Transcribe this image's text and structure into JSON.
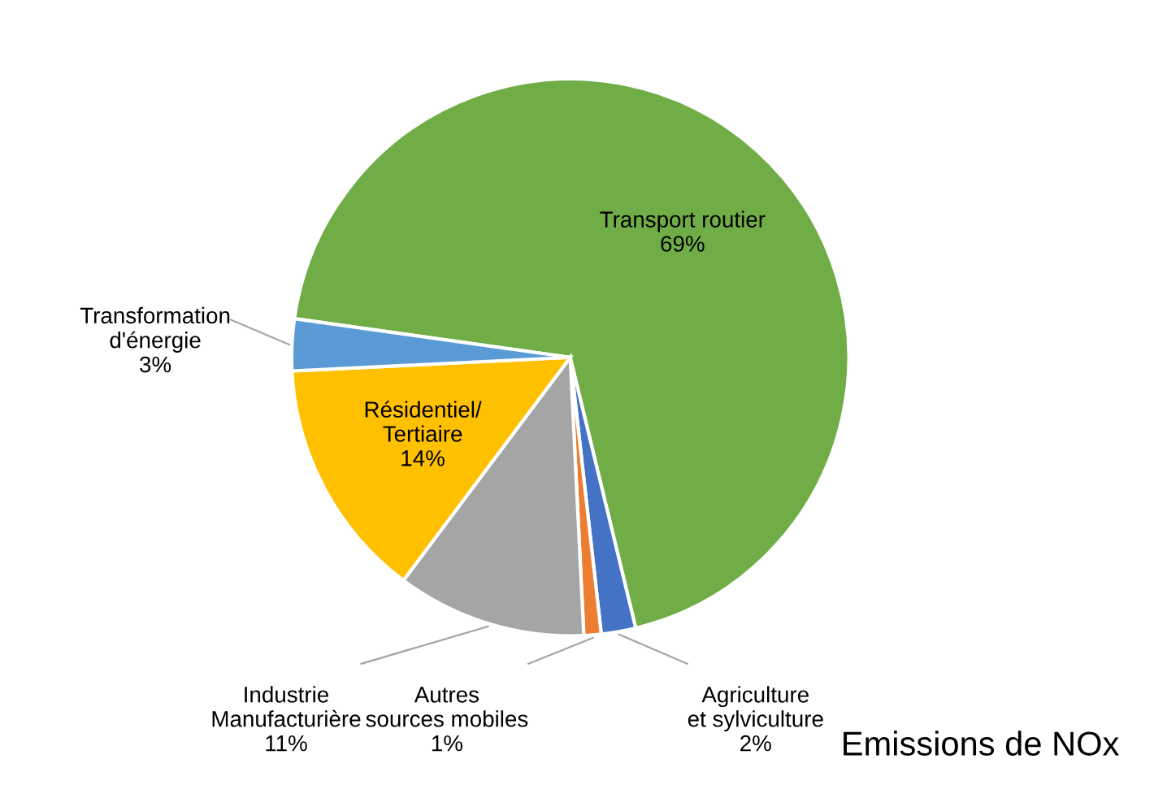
{
  "chart_data": {
    "type": "pie",
    "title": "Emissions de NOx",
    "categories": [
      "Transport routier",
      "Agriculture et sylviculture",
      "Autres sources mobiles",
      "Industrie Manufacturière",
      "Résidentiel/Tertiaire",
      "Transformation d'énergie"
    ],
    "values": [
      69,
      2,
      1,
      11,
      14,
      3
    ],
    "colors": [
      "#70ad47",
      "#4472c4",
      "#ed7d31",
      "#a5a5a5",
      "#ffc000",
      "#5b9bd5"
    ],
    "value_labels": [
      "69%",
      "2%",
      "1%",
      "11%",
      "14%",
      "3%"
    ],
    "legend": false
  }
}
